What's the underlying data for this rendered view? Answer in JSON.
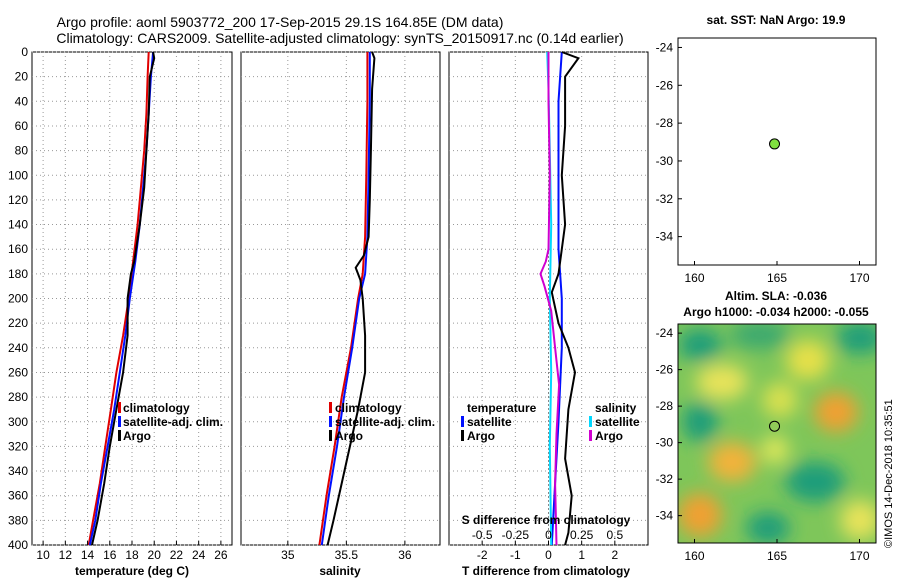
{
  "title": {
    "line1": "Argo profile: aoml 5903772_200 17-Sep-2015 29.1S 164.85E (DM data)",
    "line2": "Climatology: CARS2009. Satellite-adjusted climatology: synTS_20150917.nc (0.14d earlier)"
  },
  "colors": {
    "climatology": "#e00000",
    "satellite": "#0010ff",
    "argo": "#000000",
    "sal_clim": "#d000d0",
    "sal_sat": "#00d8ff"
  },
  "chart_data": [
    {
      "type": "line",
      "name": "temperature-profile",
      "xlabel": "temperature (deg C)",
      "xlim": [
        9,
        27
      ],
      "xticks": [
        10,
        12,
        14,
        16,
        18,
        20,
        22,
        24,
        26
      ],
      "ylim": [
        0,
        400
      ],
      "yticks": [
        0,
        20,
        40,
        60,
        80,
        100,
        120,
        140,
        160,
        180,
        200,
        220,
        240,
        260,
        280,
        300,
        320,
        340,
        360,
        380,
        400
      ],
      "legend": [
        "climatology",
        "satellite-adj. clim.",
        "Argo"
      ],
      "series": [
        {
          "name": "climatology",
          "color": "#e00000",
          "points": [
            [
              19.5,
              0
            ],
            [
              19.4,
              20
            ],
            [
              19.3,
              50
            ],
            [
              19.1,
              80
            ],
            [
              18.8,
              110
            ],
            [
              18.5,
              140
            ],
            [
              18.1,
              170
            ],
            [
              17.7,
              200
            ],
            [
              17.2,
              230
            ],
            [
              16.6,
              260
            ],
            [
              16.1,
              290
            ],
            [
              15.6,
              320
            ],
            [
              15.1,
              350
            ],
            [
              14.5,
              380
            ],
            [
              14.1,
              400
            ]
          ]
        },
        {
          "name": "satellite-adj. clim.",
          "color": "#0010ff",
          "points": [
            [
              19.9,
              0
            ],
            [
              19.7,
              20
            ],
            [
              19.5,
              50
            ],
            [
              19.3,
              80
            ],
            [
              19.0,
              110
            ],
            [
              18.7,
              140
            ],
            [
              18.3,
              170
            ],
            [
              17.8,
              200
            ],
            [
              17.4,
              230
            ],
            [
              16.9,
              260
            ],
            [
              16.4,
              290
            ],
            [
              15.8,
              320
            ],
            [
              15.2,
              350
            ],
            [
              14.7,
              380
            ],
            [
              14.2,
              400
            ]
          ]
        },
        {
          "name": "Argo",
          "color": "#000000",
          "points": [
            [
              19.9,
              0
            ],
            [
              20.0,
              5
            ],
            [
              19.6,
              20
            ],
            [
              19.5,
              50
            ],
            [
              19.3,
              80
            ],
            [
              19.1,
              110
            ],
            [
              18.7,
              140
            ],
            [
              18.2,
              170
            ],
            [
              17.9,
              180
            ],
            [
              17.6,
              200
            ],
            [
              17.6,
              230
            ],
            [
              17.2,
              260
            ],
            [
              16.6,
              290
            ],
            [
              16.0,
              320
            ],
            [
              15.5,
              350
            ],
            [
              14.9,
              380
            ],
            [
              14.4,
              400
            ]
          ]
        }
      ]
    },
    {
      "type": "line",
      "name": "salinity-profile",
      "xlabel": "salinity",
      "xlim": [
        34.6,
        36.3
      ],
      "xticks": [
        35,
        35.5,
        36
      ],
      "xticklabels": [
        "35",
        "35.5",
        "36"
      ],
      "ylim": [
        0,
        400
      ],
      "legend": [
        "climatology",
        "satellite-adj. clim.",
        "Argo"
      ],
      "series": [
        {
          "name": "climatology",
          "color": "#e00000",
          "points": [
            [
              35.68,
              0
            ],
            [
              35.68,
              40
            ],
            [
              35.67,
              100
            ],
            [
              35.66,
              150
            ],
            [
              35.64,
              180
            ],
            [
              35.6,
              200
            ],
            [
              35.54,
              240
            ],
            [
              35.46,
              280
            ],
            [
              35.4,
              320
            ],
            [
              35.33,
              360
            ],
            [
              35.27,
              400
            ]
          ]
        },
        {
          "name": "satellite-adj. clim.",
          "color": "#0010ff",
          "points": [
            [
              35.7,
              0
            ],
            [
              35.7,
              40
            ],
            [
              35.69,
              100
            ],
            [
              35.68,
              150
            ],
            [
              35.66,
              180
            ],
            [
              35.61,
              200
            ],
            [
              35.55,
              240
            ],
            [
              35.48,
              280
            ],
            [
              35.42,
              320
            ],
            [
              35.35,
              360
            ],
            [
              35.29,
              400
            ]
          ]
        },
        {
          "name": "Argo",
          "color": "#000000",
          "points": [
            [
              35.72,
              0
            ],
            [
              35.74,
              5
            ],
            [
              35.72,
              30
            ],
            [
              35.71,
              80
            ],
            [
              35.7,
              120
            ],
            [
              35.69,
              150
            ],
            [
              35.65,
              165
            ],
            [
              35.58,
              175
            ],
            [
              35.62,
              185
            ],
            [
              35.64,
              200
            ],
            [
              35.66,
              230
            ],
            [
              35.66,
              260
            ],
            [
              35.6,
              290
            ],
            [
              35.53,
              320
            ],
            [
              35.46,
              350
            ],
            [
              35.39,
              380
            ],
            [
              35.34,
              400
            ]
          ]
        }
      ]
    },
    {
      "type": "line",
      "name": "difference-profile",
      "xlabel": "T difference from climatology",
      "xlabel_top": "S difference from climatology",
      "xlim": [
        -3,
        3
      ],
      "xticks": [
        -2,
        -1,
        0,
        1,
        2
      ],
      "xticklabels": [
        "-2",
        "-1",
        "0",
        "1",
        "2"
      ],
      "sticks": [
        -0.5,
        -0.25,
        0,
        0.25,
        0.5
      ],
      "sticklabels": [
        "-0.5",
        "-0.25",
        "0",
        "0.25",
        "0.5"
      ],
      "slim": [
        -0.75,
        0.75
      ],
      "ylim": [
        0,
        400
      ],
      "legend_t": [
        "temperature",
        "satellite",
        "Argo"
      ],
      "legend_s": [
        "salinity",
        "satellite",
        "Argo"
      ],
      "series": [
        {
          "name": "temperature satellite",
          "color": "#0010ff",
          "var": "t",
          "points": [
            [
              0.4,
              0
            ],
            [
              0.3,
              40
            ],
            [
              0.3,
              100
            ],
            [
              0.3,
              160
            ],
            [
              0.4,
              200
            ],
            [
              0.4,
              240
            ],
            [
              0.3,
              300
            ],
            [
              0.2,
              350
            ],
            [
              0.1,
              400
            ]
          ]
        },
        {
          "name": "temperature Argo",
          "color": "#000000",
          "var": "t",
          "points": [
            [
              0.4,
              0
            ],
            [
              0.9,
              5
            ],
            [
              0.5,
              20
            ],
            [
              0.5,
              60
            ],
            [
              0.4,
              100
            ],
            [
              0.5,
              140
            ],
            [
              0.3,
              180
            ],
            [
              0.1,
              195
            ],
            [
              0.3,
              220
            ],
            [
              0.6,
              240
            ],
            [
              0.8,
              260
            ],
            [
              0.6,
              290
            ],
            [
              0.5,
              330
            ],
            [
              0.7,
              360
            ],
            [
              0.6,
              390
            ],
            [
              0.5,
              400
            ]
          ]
        },
        {
          "name": "salinity satellite",
          "color": "#00d8ff",
          "var": "s",
          "points": [
            [
              -0.01,
              0
            ],
            [
              0.0,
              30
            ],
            [
              0.01,
              80
            ],
            [
              0.02,
              140
            ],
            [
              0.01,
              200
            ],
            [
              0.02,
              260
            ],
            [
              0.01,
              320
            ],
            [
              0.02,
              400
            ]
          ]
        },
        {
          "name": "salinity Argo",
          "color": "#d000d0",
          "var": "s",
          "points": [
            [
              0.0,
              0
            ],
            [
              0.0,
              40
            ],
            [
              0.01,
              100
            ],
            [
              0.0,
              160
            ],
            [
              -0.02,
              170
            ],
            [
              -0.06,
              180
            ],
            [
              -0.03,
              190
            ],
            [
              0.02,
              210
            ],
            [
              0.05,
              240
            ],
            [
              0.08,
              270
            ],
            [
              0.06,
              310
            ],
            [
              0.05,
              350
            ],
            [
              0.06,
              400
            ]
          ]
        }
      ]
    },
    {
      "type": "scatter",
      "name": "sst-map",
      "title": "sat. SST: NaN Argo: 19.9",
      "xlim": [
        159,
        171
      ],
      "ylim": [
        -35.5,
        -23.5
      ],
      "xticks": [
        160,
        165,
        170
      ],
      "yticks": [
        -24,
        -26,
        -28,
        -30,
        -32,
        -34
      ],
      "point": [
        164.85,
        -29.1
      ]
    },
    {
      "type": "heatmap",
      "name": "sla-map",
      "title_line1": "Altim. SLA: -0.036",
      "title_line2": "Argo h1000: -0.034 h2000: -0.055",
      "xlim": [
        159,
        171
      ],
      "ylim": [
        -35.5,
        -23.5
      ],
      "xticks": [
        160,
        165,
        170
      ],
      "yticks": [
        -24,
        -26,
        -28,
        -30,
        -32,
        -34
      ],
      "point": [
        164.85,
        -29.1
      ]
    }
  ],
  "footer": {
    "credit": "©IMOS 14-Dec-2018 10:35:51"
  }
}
